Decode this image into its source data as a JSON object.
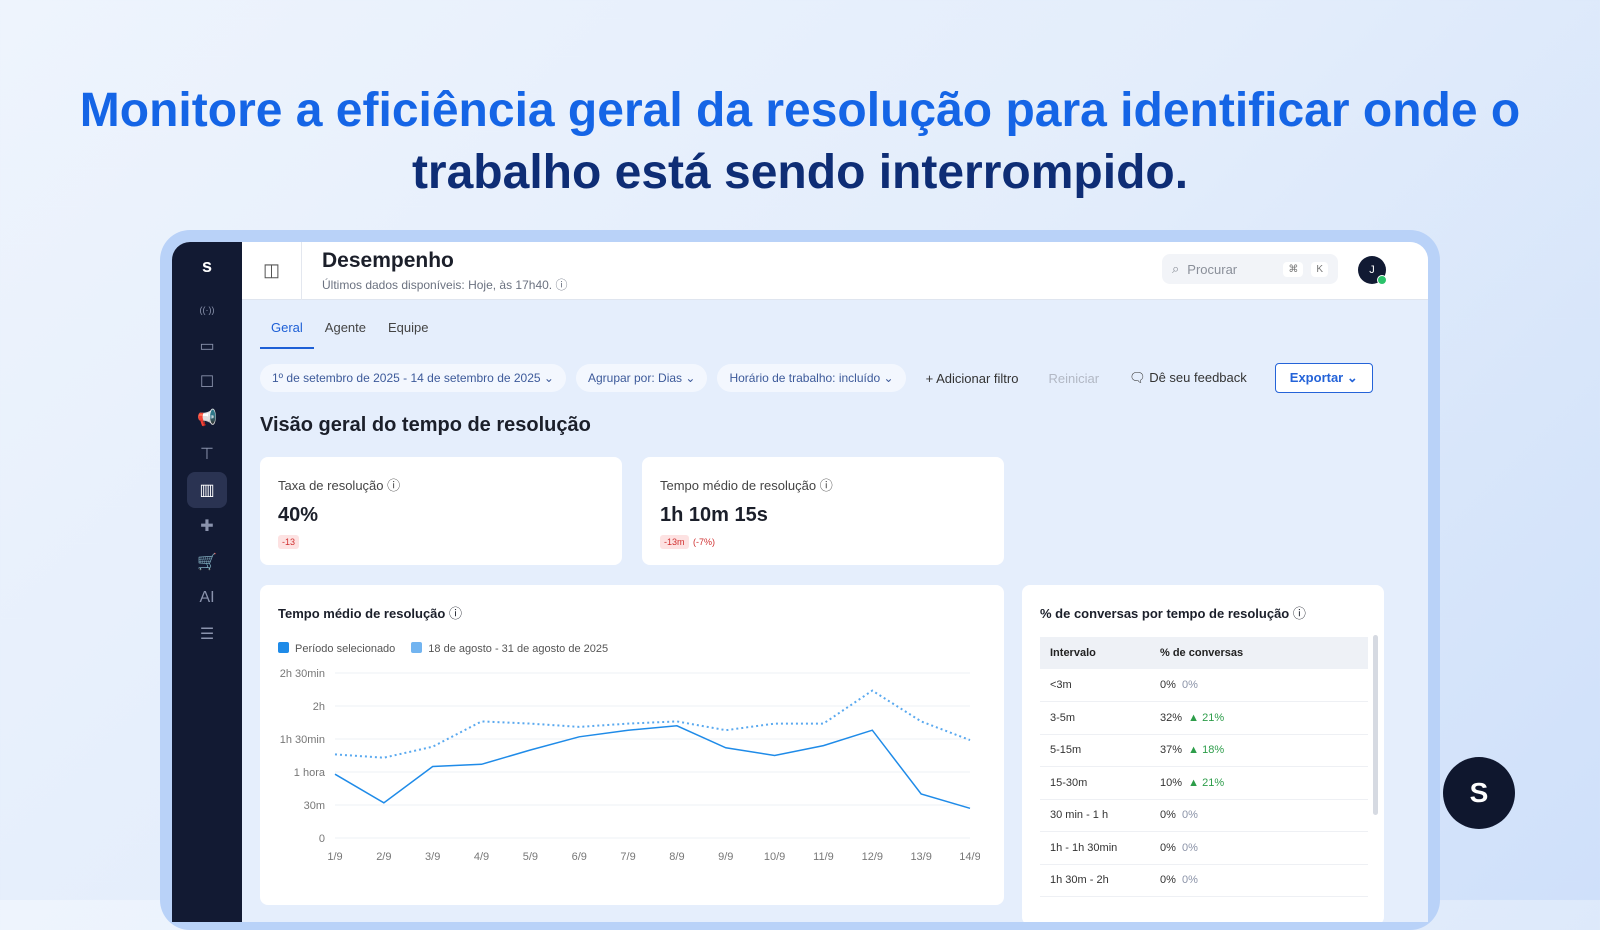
{
  "headline": {
    "part1": "Monitore a eficiência geral da resolução para identificar onde o",
    "part2": "trabalho está sendo interrompido."
  },
  "sidebar": {
    "logo": "s",
    "items": [
      "broadcast-icon",
      "inbox-icon",
      "contacts-icon",
      "megaphone-icon",
      "workflow-icon",
      "reports-icon",
      "puzzle-icon",
      "cart-icon",
      "ai-icon",
      "database-icon"
    ],
    "active": 5
  },
  "header": {
    "title": "Desempenho",
    "subtitle": "Últimos dados disponíveis: Hoje, às 17h40.",
    "search_placeholder": "Procurar",
    "shortcut_cmd": "⌘",
    "shortcut_key": "K",
    "avatar": "J"
  },
  "tabs": [
    "Geral",
    "Agente",
    "Equipe"
  ],
  "filters": {
    "date": "1º de setembro de 2025 - 14 de setembro de 2025",
    "group": "Agrupar por: Dias",
    "hours": "Horário de trabalho: incluído",
    "add": "Adicionar filtro",
    "reset": "Reiniciar",
    "feedback": "Dê seu feedback",
    "export": "Exportar"
  },
  "section_title": "Visão geral do tempo de resolução",
  "kpis": [
    {
      "label": "Taxa de resolução",
      "value": "40%",
      "delta": "-13",
      "pct": ""
    },
    {
      "label": "Tempo médio de resolução",
      "value": "1h 10m 15s",
      "delta": "-13m",
      "pct": "(-7%)"
    }
  ],
  "chart_data": {
    "type": "line",
    "title": "Tempo médio de resolução",
    "categories": [
      "1/9",
      "2/9",
      "3/9",
      "4/9",
      "5/9",
      "6/9",
      "7/9",
      "8/9",
      "9/9",
      "10/9",
      "11/9",
      "12/9",
      "13/9",
      "14/9"
    ],
    "yticks": [
      {
        "v": 0,
        "label": "0"
      },
      {
        "v": 30,
        "label": "30m"
      },
      {
        "v": 60,
        "label": "1 hora"
      },
      {
        "v": 90,
        "label": "1h 30min"
      },
      {
        "v": 120,
        "label": "2h"
      },
      {
        "v": 150,
        "label": "2h 30min"
      }
    ],
    "ylim": [
      0,
      150
    ],
    "yunit": "minutes",
    "grid": true,
    "legend": "top-left",
    "series": [
      {
        "name": "Período selecionado",
        "color": "#1f8be8",
        "style": "solid",
        "values": [
          58,
          32,
          65,
          67,
          80,
          92,
          98,
          102,
          82,
          75,
          84,
          98,
          40,
          27
        ]
      },
      {
        "name": "18 de agosto - 31 de agosto de 2025",
        "color": "#5aa9ef",
        "style": "dotted",
        "values": [
          76,
          73,
          83,
          106,
          104,
          101,
          104,
          106,
          98,
          104,
          104,
          134,
          106,
          89
        ]
      }
    ]
  },
  "table": {
    "title": "% de conversas por tempo de resolução",
    "headers": [
      "Intervalo",
      "% de conversas"
    ],
    "rows": [
      {
        "range": "<3m",
        "value": "0%",
        "change": "0%",
        "trend": "neutral"
      },
      {
        "range": "3-5m",
        "value": "32%",
        "change": "▲ 21%",
        "trend": "up"
      },
      {
        "range": "5-15m",
        "value": "37%",
        "change": "▲ 18%",
        "trend": "up"
      },
      {
        "range": "15-30m",
        "value": "10%",
        "change": "▲ 21%",
        "trend": "up"
      },
      {
        "range": "30 min - 1 h",
        "value": "0%",
        "change": "0%",
        "trend": "neutral"
      },
      {
        "range": "1h - 1h 30min",
        "value": "0%",
        "change": "0%",
        "trend": "neutral"
      },
      {
        "range": "1h 30m - 2h",
        "value": "0%",
        "change": "0%",
        "trend": "neutral"
      }
    ]
  },
  "fab": "S"
}
